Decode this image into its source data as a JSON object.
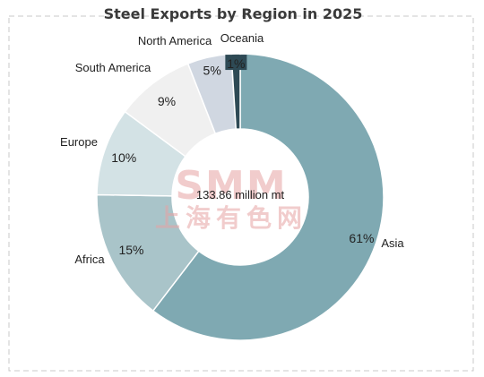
{
  "chart_data": {
    "type": "pie",
    "title": "Steel Exports by Region in 2025",
    "center_label": "133.86 million mt",
    "categories": [
      "Asia",
      "Africa",
      "Europe",
      "South America",
      "North America",
      "Oceania"
    ],
    "values": [
      61,
      15,
      10,
      9,
      5,
      1
    ],
    "value_labels": [
      "61%",
      "15%",
      "10%",
      "9%",
      "5%",
      "1%"
    ],
    "colors": [
      "#7fa9b2",
      "#a9c4c9",
      "#d3e2e5",
      "#f0f0f0",
      "#d0d7e1",
      "#2e4a55"
    ],
    "donut": true
  },
  "watermark": {
    "logo": "SMM",
    "text": "上海有色网"
  }
}
